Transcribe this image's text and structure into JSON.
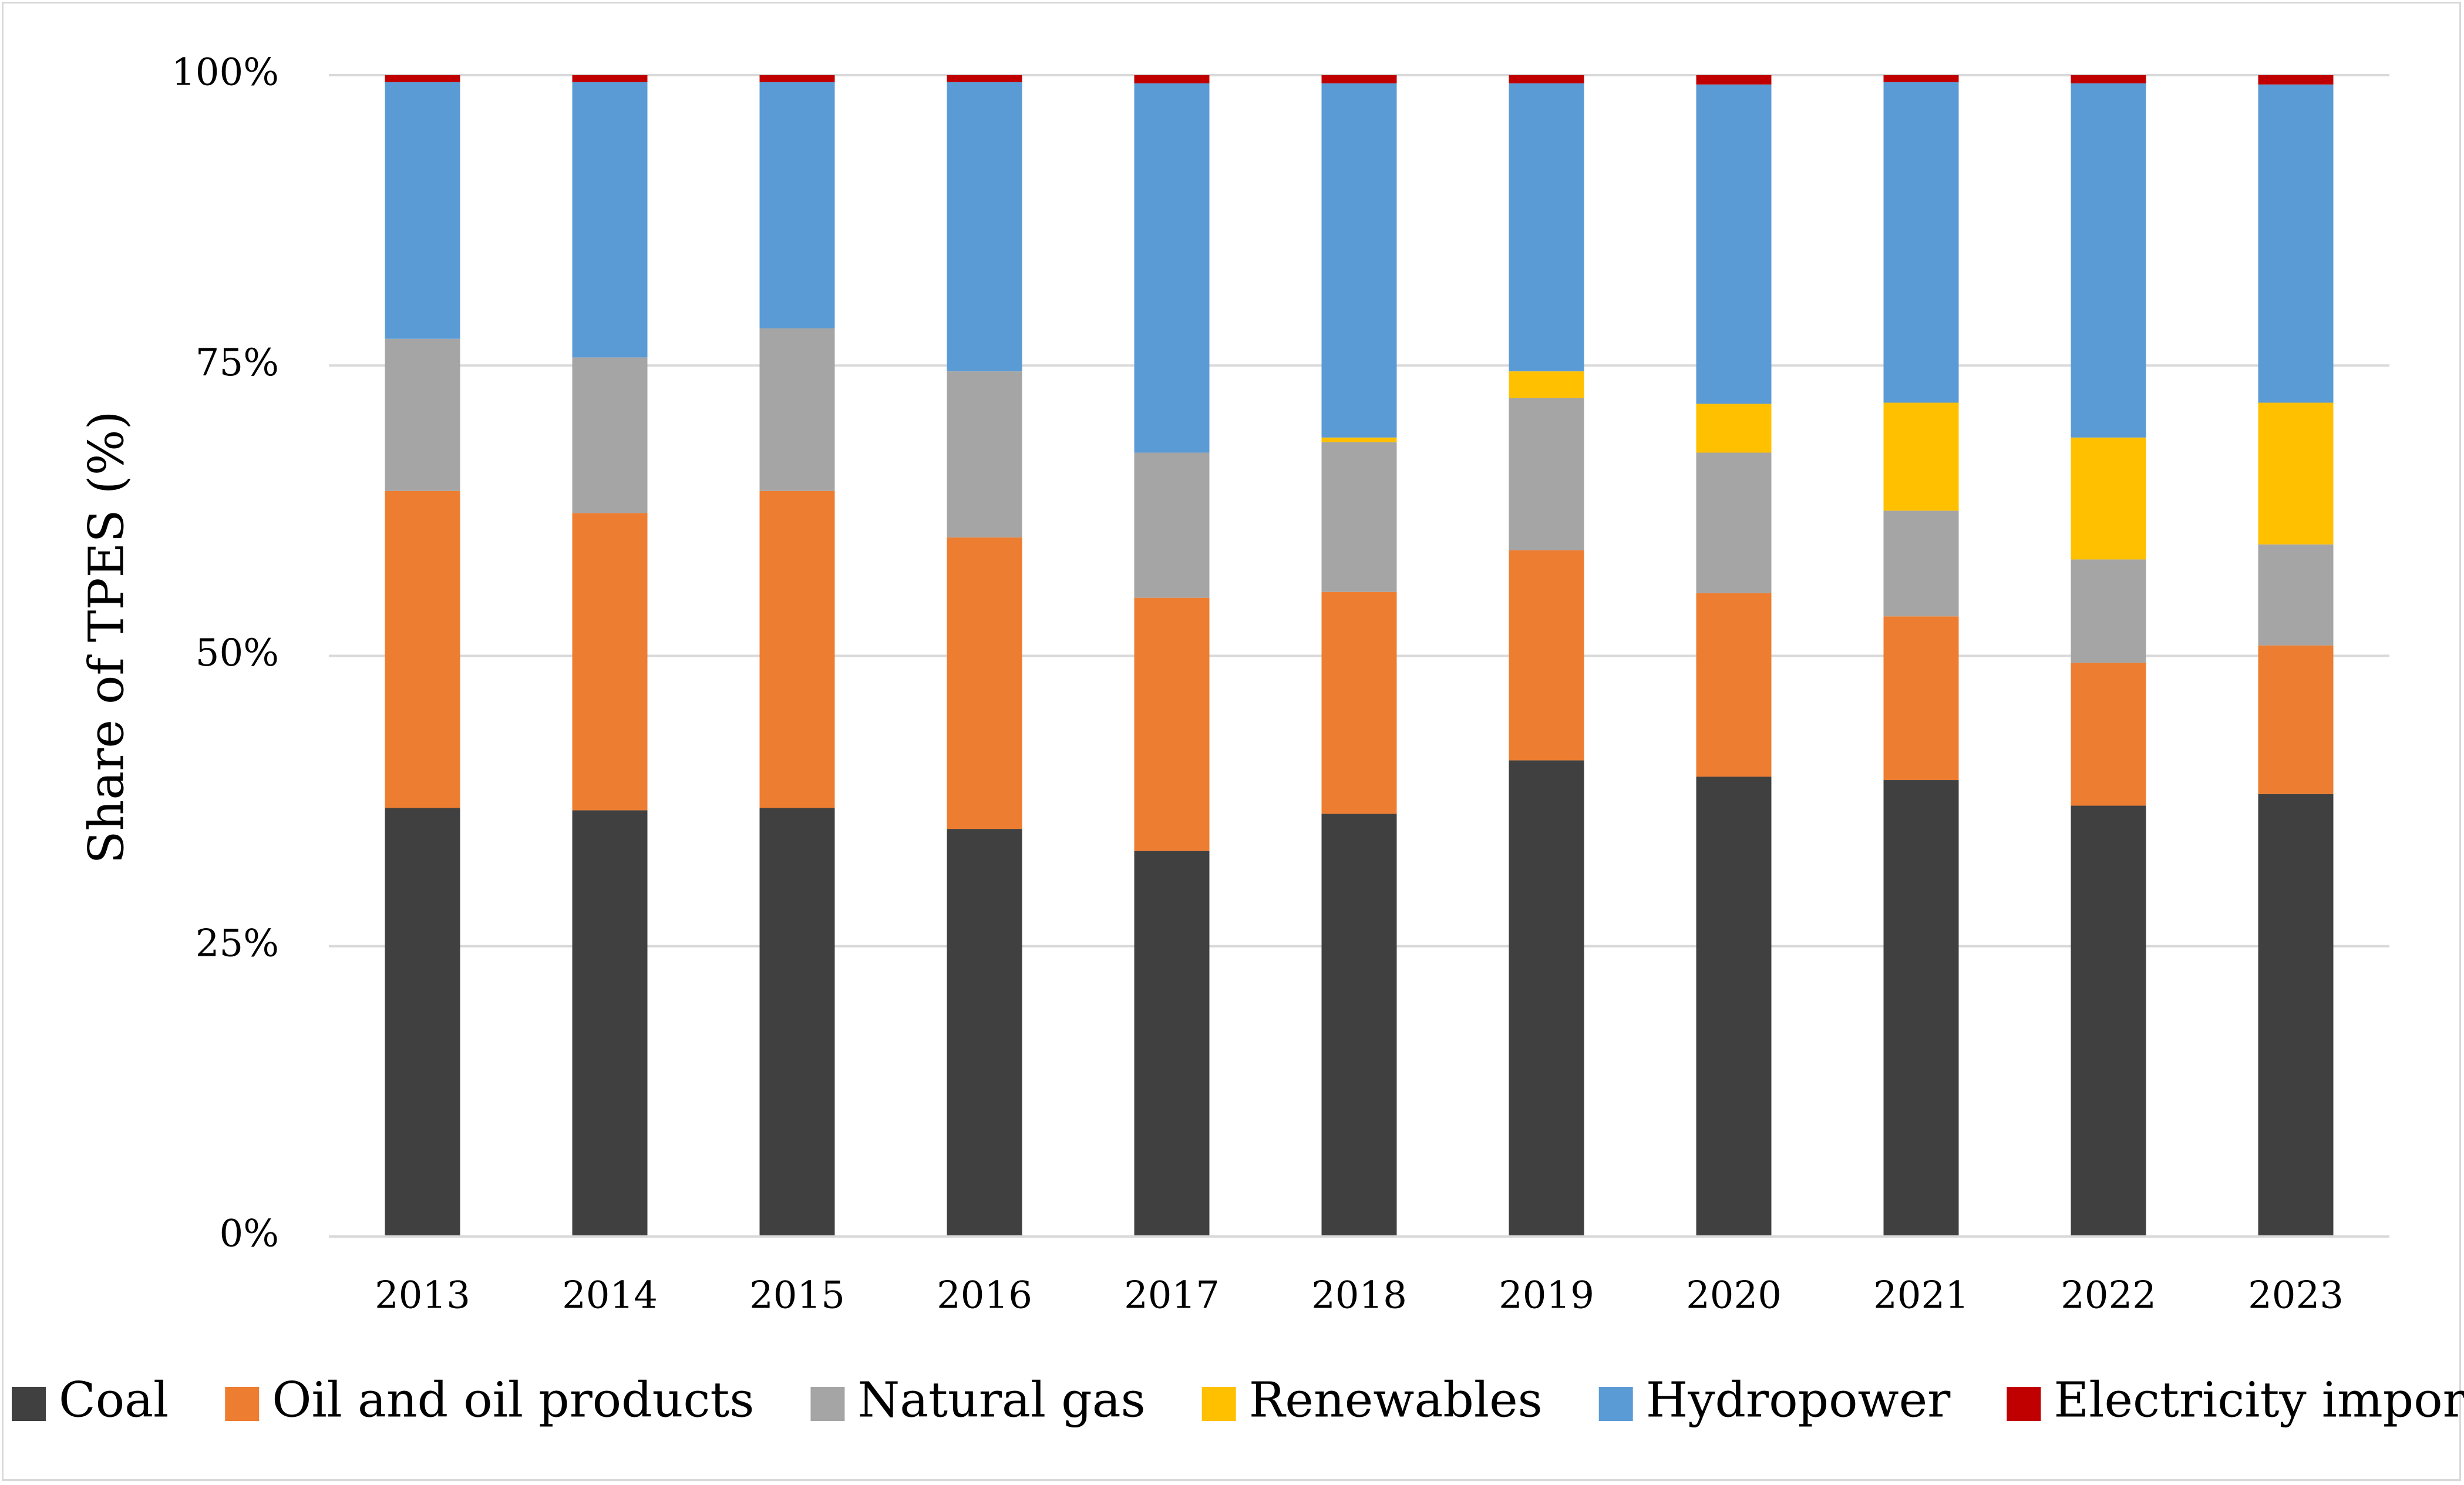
{
  "chart_data": {
    "type": "stacked-bar-100",
    "title": "",
    "xlabel": "",
    "ylabel": "Share of TPES (%)",
    "ylim": [
      0,
      100
    ],
    "ytick_values": [
      0,
      25,
      50,
      75,
      100
    ],
    "ytick_labels": [
      "0%",
      "25%",
      "50%",
      "75%",
      "100%"
    ],
    "grid": true,
    "legend_position": "bottom",
    "categories": [
      "2013",
      "2014",
      "2015",
      "2016",
      "2017",
      "2018",
      "2019",
      "2020",
      "2021",
      "2022",
      "2023"
    ],
    "series": [
      {
        "name": "Coal",
        "color": "#404040",
        "values": [
          36.9,
          36.7,
          36.9,
          35.1,
          33.2,
          36.4,
          41.0,
          39.6,
          39.3,
          37.1,
          38.1
        ]
      },
      {
        "name": "Oil and oil products",
        "color": "#ED7D31",
        "values": [
          27.3,
          25.6,
          27.3,
          25.1,
          21.8,
          19.1,
          18.1,
          15.8,
          14.1,
          12.3,
          12.8
        ]
      },
      {
        "name": "Natural gas",
        "color": "#A5A5A5",
        "values": [
          13.1,
          13.4,
          14.0,
          14.3,
          12.5,
          12.9,
          13.1,
          12.1,
          9.1,
          8.9,
          8.7
        ]
      },
      {
        "name": "Renewables",
        "color": "#FFC000",
        "values": [
          0.0,
          0.0,
          0.0,
          0.0,
          0.0,
          0.4,
          2.3,
          4.2,
          9.3,
          10.5,
          12.2
        ]
      },
      {
        "name": "Hydropower",
        "color": "#5B9BD5",
        "values": [
          22.1,
          23.7,
          21.2,
          24.9,
          31.8,
          30.5,
          24.8,
          27.5,
          27.6,
          30.5,
          27.4
        ]
      },
      {
        "name": "Electricity import",
        "color": "#C00000",
        "values": [
          0.6,
          0.6,
          0.6,
          0.6,
          0.7,
          0.7,
          0.7,
          0.8,
          0.6,
          0.7,
          0.8
        ]
      }
    ]
  }
}
